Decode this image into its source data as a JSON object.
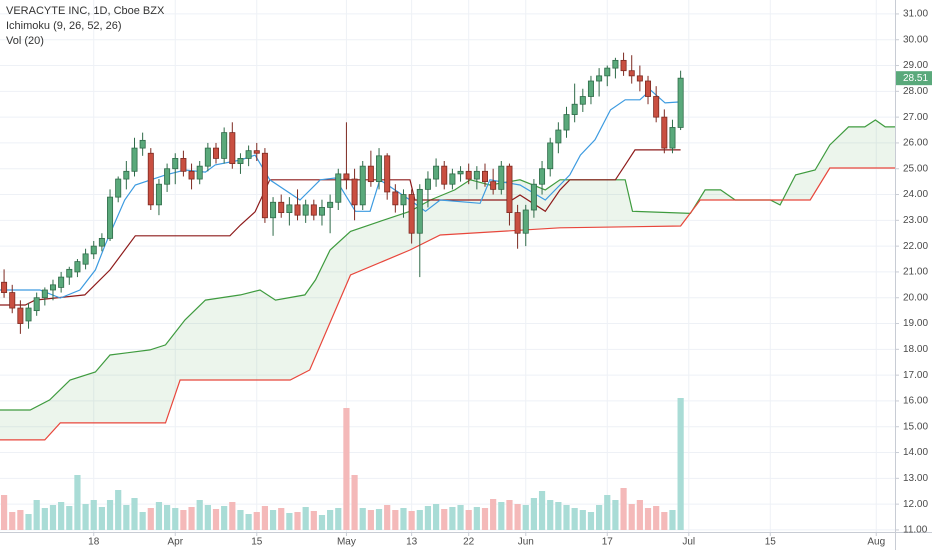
{
  "chart_data": {
    "type": "candlestick",
    "title": "VERACYTE INC, 1D, Cboe BZX",
    "indicator_labels": [
      "Ichimoku (9, 26, 52, 26)",
      "Vol (20)"
    ],
    "up_color": "#5aa97b",
    "down_color": "#c94f41",
    "volume_up_color": "#a9dcd6",
    "volume_down_color": "#f4b9b9",
    "grid": true,
    "xlim": [
      -0.5,
      109.3
    ],
    "xticks": [
      {
        "value": 11,
        "label": "18"
      },
      {
        "value": 21,
        "label": "Apr"
      },
      {
        "value": 31,
        "label": "15"
      },
      {
        "value": 42,
        "label": "May"
      },
      {
        "value": 50,
        "label": "13"
      },
      {
        "value": 57,
        "label": "22"
      },
      {
        "value": 64,
        "label": "Jun"
      },
      {
        "value": 74,
        "label": "17"
      },
      {
        "value": 84,
        "label": "Jul"
      },
      {
        "value": 94,
        "label": "15"
      },
      {
        "value": 107,
        "label": "Aug"
      }
    ],
    "ylim": [
      10.92,
      31.54
    ],
    "yticks": [
      {
        "value": 11,
        "label": "11.00"
      },
      {
        "value": 12,
        "label": "12.00"
      },
      {
        "value": 13,
        "label": "13.00"
      },
      {
        "value": 14,
        "label": "14.00"
      },
      {
        "value": 15,
        "label": "15.00"
      },
      {
        "value": 16,
        "label": "16.00"
      },
      {
        "value": 17,
        "label": "17.00"
      },
      {
        "value": 18,
        "label": "18.00"
      },
      {
        "value": 19,
        "label": "19.00"
      },
      {
        "value": 20,
        "label": "20.00"
      },
      {
        "value": 21,
        "label": "21.00"
      },
      {
        "value": 22,
        "label": "22.00"
      },
      {
        "value": 23,
        "label": "23.00"
      },
      {
        "value": 24,
        "label": "24.00"
      },
      {
        "value": 25,
        "label": "25.00"
      },
      {
        "value": 26,
        "label": "26.00"
      },
      {
        "value": 27,
        "label": "27.00"
      },
      {
        "value": 28,
        "label": "28.00"
      },
      {
        "value": 29,
        "label": "29.00"
      },
      {
        "value": 30,
        "label": "30.00"
      },
      {
        "value": 31,
        "label": "31.00"
      }
    ],
    "last_price": {
      "value": 28.51,
      "label": "28.51"
    },
    "x": [
      0,
      1,
      2,
      3,
      4,
      5,
      6,
      7,
      8,
      9,
      10,
      11,
      12,
      13,
      14,
      15,
      16,
      17,
      18,
      19,
      20,
      21,
      22,
      23,
      24,
      25,
      26,
      27,
      28,
      29,
      30,
      31,
      32,
      33,
      34,
      35,
      36,
      37,
      38,
      39,
      40,
      41,
      42,
      43,
      44,
      45,
      46,
      47,
      48,
      49,
      50,
      51,
      52,
      53,
      54,
      55,
      56,
      57,
      58,
      59,
      60,
      61,
      62,
      63,
      64,
      65,
      66,
      67,
      68,
      69,
      70,
      71,
      72,
      73,
      74,
      75,
      76,
      77,
      78,
      79,
      80,
      81,
      82,
      83
    ],
    "open": [
      20.6,
      20.2,
      19.6,
      19.1,
      19.5,
      20.0,
      20.3,
      20.4,
      20.8,
      21.0,
      21.3,
      21.7,
      22.0,
      22.3,
      23.9,
      24.6,
      24.9,
      25.8,
      25.6,
      23.6,
      24.4,
      25.0,
      25.4,
      24.9,
      24.6,
      25.1,
      25.8,
      25.4,
      26.4,
      25.2,
      25.4,
      25.7,
      25.6,
      23.1,
      23.7,
      23.3,
      23.6,
      23.2,
      23.6,
      23.2,
      23.5,
      23.7,
      24.8,
      24.6,
      23.6,
      25.1,
      24.5,
      25.5,
      24.1,
      23.6,
      24.0,
      22.5,
      24.2,
      24.6,
      25.1,
      24.4,
      24.8,
      24.9,
      24.6,
      24.9,
      24.5,
      24.2,
      25.1,
      23.3,
      22.5,
      23.4,
      24.4,
      25.0,
      26.0,
      26.5,
      27.1,
      27.5,
      27.8,
      28.4,
      28.6,
      28.9,
      29.2,
      28.8,
      28.6,
      28.4,
      27.8,
      27.0,
      25.8,
      26.6
    ],
    "high": [
      21.1,
      20.5,
      19.9,
      19.8,
      20.2,
      20.4,
      20.7,
      21.0,
      21.2,
      21.5,
      21.9,
      22.2,
      22.5,
      24.2,
      24.7,
      25.3,
      26.2,
      26.4,
      25.8,
      24.6,
      25.2,
      25.6,
      25.7,
      25.2,
      25.3,
      26.0,
      26.0,
      26.6,
      26.8,
      25.6,
      25.9,
      26.0,
      25.8,
      23.9,
      24.0,
      23.9,
      24.2,
      23.8,
      23.8,
      23.8,
      24.0,
      25.0,
      26.8,
      25.0,
      25.3,
      25.7,
      25.8,
      25.6,
      24.4,
      24.2,
      24.2,
      24.4,
      24.9,
      25.4,
      25.3,
      25.0,
      25.1,
      25.2,
      25.1,
      25.2,
      25.0,
      25.3,
      25.2,
      23.6,
      23.6,
      24.6,
      25.3,
      26.2,
      26.8,
      27.4,
      28.3,
      28.1,
      28.6,
      28.9,
      29.0,
      29.3,
      29.5,
      29.4,
      29.0,
      28.6,
      28.2,
      27.3,
      26.9,
      28.8
    ],
    "low": [
      20.0,
      19.4,
      18.6,
      18.8,
      19.3,
      19.7,
      19.9,
      20.2,
      20.5,
      20.8,
      21.1,
      21.5,
      21.8,
      22.2,
      23.7,
      24.2,
      24.7,
      25.5,
      23.4,
      23.2,
      24.1,
      24.4,
      24.7,
      24.2,
      24.4,
      24.9,
      25.2,
      25.2,
      25.0,
      24.8,
      25.1,
      25.3,
      22.9,
      22.4,
      23.1,
      22.8,
      23.0,
      22.9,
      23.0,
      22.8,
      22.5,
      23.4,
      24.2,
      23.0,
      23.4,
      24.3,
      24.2,
      23.8,
      23.3,
      23.1,
      22.1,
      20.8,
      23.5,
      24.3,
      24.2,
      24.2,
      24.5,
      24.4,
      24.2,
      24.3,
      24.0,
      24.0,
      22.8,
      21.9,
      22.0,
      23.1,
      24.0,
      24.7,
      25.6,
      26.2,
      26.8,
      27.2,
      27.5,
      27.8,
      28.2,
      28.5,
      28.6,
      28.3,
      28.0,
      27.5,
      26.8,
      25.6,
      25.6,
      26.5
    ],
    "close": [
      20.2,
      19.6,
      19.0,
      19.6,
      20.0,
      20.3,
      20.5,
      20.8,
      21.1,
      21.4,
      21.7,
      22.0,
      22.3,
      23.9,
      24.6,
      24.9,
      25.8,
      26.1,
      23.6,
      24.4,
      25.0,
      25.4,
      24.9,
      24.6,
      25.1,
      25.8,
      25.4,
      26.4,
      25.2,
      25.4,
      25.7,
      25.6,
      23.1,
      23.7,
      23.3,
      23.6,
      23.2,
      23.6,
      23.2,
      23.5,
      23.7,
      24.8,
      24.6,
      23.6,
      25.1,
      24.5,
      25.5,
      24.1,
      23.6,
      24.0,
      22.5,
      24.2,
      24.6,
      25.1,
      24.4,
      24.8,
      24.9,
      24.6,
      24.9,
      24.5,
      24.2,
      25.1,
      23.3,
      22.5,
      23.4,
      24.4,
      25.0,
      26.0,
      26.5,
      27.1,
      27.5,
      27.8,
      28.4,
      28.6,
      28.9,
      29.2,
      28.8,
      28.6,
      28.4,
      27.8,
      27.0,
      25.8,
      26.6,
      28.51
    ],
    "volume": [
      350,
      180,
      200,
      160,
      300,
      220,
      250,
      280,
      240,
      550,
      260,
      300,
      230,
      300,
      400,
      250,
      320,
      180,
      220,
      280,
      250,
      220,
      200,
      230,
      300,
      250,
      210,
      240,
      280,
      200,
      160,
      180,
      240,
      200,
      220,
      170,
      180,
      230,
      190,
      150,
      200,
      220,
      1220,
      550,
      220,
      200,
      210,
      250,
      200,
      220,
      190,
      200,
      240,
      260,
      210,
      230,
      250,
      200,
      230,
      220,
      310,
      280,
      300,
      260,
      250,
      320,
      390,
      300,
      280,
      250,
      220,
      200,
      180,
      250,
      350,
      300,
      420,
      260,
      300,
      220,
      240,
      180,
      200,
      1320
    ],
    "volume_lim": [
      0,
      1400
    ],
    "ichimoku": {
      "conversion_line": {
        "color": "#3d9be0",
        "x": [
          -0.5,
          4.4,
          6.9,
          9.3,
          11.2,
          12.4,
          14.8,
          16.1,
          19.8,
          22.2,
          24.7,
          25.9,
          29,
          30.8,
          32.6,
          36.3,
          38.8,
          40.6,
          43.1,
          44.9,
          46.1,
          49.8,
          51.7,
          53.5,
          58.4,
          59.6,
          63.3,
          66.4,
          68.2,
          69.4,
          70.7,
          72.5,
          74.4,
          76.2,
          78,
          79.3,
          81.1,
          83
        ],
        "values": [
          20.3,
          20.3,
          19.99,
          20.3,
          21.08,
          22.05,
          23.79,
          24.37,
          24.76,
          24.95,
          24.87,
          25.15,
          25.34,
          25.53,
          24.57,
          23.79,
          24.57,
          24.64,
          23.35,
          23.35,
          24.57,
          23.79,
          23.35,
          23.79,
          23.66,
          24.57,
          24.37,
          23.79,
          24.37,
          24.76,
          25.53,
          26.12,
          27.28,
          27.67,
          27.67,
          28.05,
          27.55,
          27.59
        ]
      },
      "base_line": {
        "color": "#8e1b1b",
        "x": [
          -0.5,
          2.6,
          3.8,
          9.9,
          13,
          16.1,
          27.7,
          29,
          30.8,
          32.6,
          49.8,
          50.4,
          62.3,
          63.3,
          66.4,
          68.2,
          69.4,
          75,
          76.2,
          77.4,
          83
        ],
        "values": [
          19.72,
          19.72,
          19.91,
          20.11,
          21.08,
          22.4,
          22.4,
          22.82,
          23.33,
          24.57,
          24.57,
          23.79,
          23.79,
          23.98,
          23.35,
          24.18,
          24.57,
          24.57,
          25.15,
          25.73,
          25.73
        ]
      },
      "leading_span_a": {
        "color": "#3f9b3f",
        "x": [
          -0.5,
          3.2,
          5.6,
          8.1,
          11.2,
          13,
          17.9,
          19.8,
          22.2,
          24.7,
          29,
          31.4,
          33.3,
          36.9,
          38.2,
          40,
          42.5,
          46.1,
          49.8,
          52.3,
          55.3,
          57.2,
          59.6,
          63.3,
          66.4,
          68.2,
          76.2,
          77.1,
          84.2,
          86,
          87.9,
          89.7,
          94,
          95.2,
          97.1,
          99.5,
          101.3,
          103.6,
          105.6,
          106.9,
          108.1,
          109.3
        ],
        "values": [
          15.65,
          15.65,
          16.04,
          16.81,
          17.12,
          17.78,
          17.98,
          18.17,
          19.14,
          19.91,
          20.11,
          20.3,
          19.91,
          20.11,
          20.69,
          21.85,
          22.57,
          22.96,
          23.35,
          23.79,
          24.18,
          24.57,
          24.37,
          24.57,
          24.18,
          24.57,
          24.57,
          23.35,
          23.27,
          24.18,
          24.18,
          23.79,
          23.79,
          23.6,
          24.76,
          24.95,
          25.92,
          26.62,
          26.62,
          26.89,
          26.62,
          26.62
        ]
      },
      "leading_span_b": {
        "color": "#e8473c",
        "x": [
          -0.5,
          5,
          6.9,
          19.8,
          21.6,
          35.1,
          37.5,
          42.5,
          49.8,
          53.5,
          68.2,
          83,
          85.4,
          98.9,
          101.3,
          109.3
        ],
        "values": [
          14.49,
          14.49,
          15.15,
          15.15,
          16.81,
          16.81,
          17.2,
          20.88,
          21.85,
          22.43,
          22.71,
          22.78,
          23.79,
          23.79,
          25.03,
          25.03
        ]
      },
      "cloud_color": "#43a047"
    }
  }
}
